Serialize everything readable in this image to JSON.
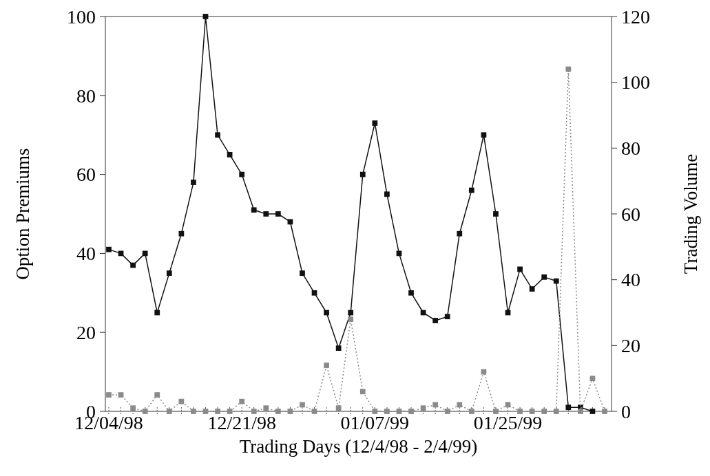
{
  "chart_data": {
    "type": "line",
    "xlabel": "Trading Days (12/4/98 - 2/4/99)",
    "ylabel": "Option Premiums",
    "y2label": "Trading Volume",
    "categories": [
      "12/04/98",
      null,
      null,
      null,
      null,
      null,
      null,
      null,
      null,
      null,
      null,
      "12/21/98",
      null,
      null,
      null,
      null,
      null,
      null,
      null,
      null,
      null,
      null,
      "01/07/99",
      null,
      null,
      null,
      null,
      null,
      null,
      null,
      null,
      null,
      null,
      "01/25/99",
      null,
      null,
      null,
      null,
      null,
      null,
      null,
      null
    ],
    "ylim": [
      0,
      100
    ],
    "yticks": [
      0,
      20,
      40,
      60,
      80,
      100
    ],
    "y2lim": [
      0,
      120
    ],
    "y2ticks": [
      0,
      20,
      40,
      60,
      80,
      100,
      120
    ],
    "marker": "square",
    "series": [
      {
        "color": "#111111",
        "line_style": "solid",
        "values": [
          41,
          40,
          37,
          40,
          25,
          35,
          45,
          58,
          100,
          70,
          65,
          60,
          51,
          50,
          50,
          48,
          35,
          30,
          25,
          16,
          25,
          60,
          73,
          55,
          40,
          30,
          25,
          23,
          24,
          45,
          56,
          70,
          50,
          25,
          36,
          31,
          34,
          33,
          1,
          1,
          0,
          null
        ]
      },
      {
        "color": "#8a8a8a",
        "line_style": "dotted",
        "axis": "y2",
        "values": [
          5,
          5,
          1,
          0,
          5,
          0,
          3,
          0,
          0,
          0,
          0,
          3,
          0,
          1,
          0,
          0,
          2,
          0,
          14,
          1,
          28,
          6,
          0,
          0,
          0,
          0,
          1,
          2,
          0,
          2,
          0,
          12,
          0,
          2,
          0,
          0,
          0,
          0,
          104,
          0,
          10,
          0
        ]
      }
    ]
  }
}
